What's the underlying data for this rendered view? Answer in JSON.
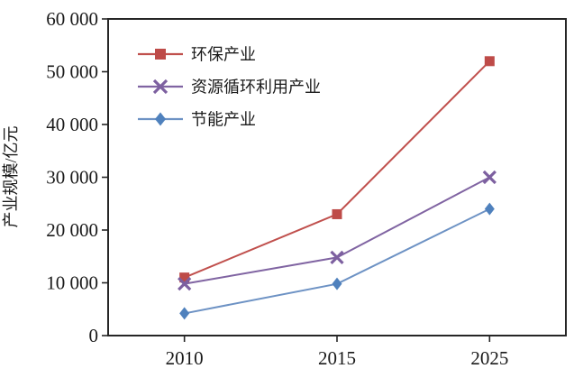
{
  "chart_data": {
    "type": "line",
    "title": "",
    "xlabel": "",
    "ylabel": "产业规模/亿元",
    "categories": [
      "2010",
      "2015",
      "2025"
    ],
    "series": [
      {
        "name": "环保产业",
        "marker": "square",
        "marker_color": "#BE4B48",
        "line_color": "#C0504D",
        "values": [
          11000,
          23000,
          52000
        ]
      },
      {
        "name": "资源循环利用产业",
        "marker": "x",
        "marker_color": "#7D60A0",
        "line_color": "#8064A2",
        "values": [
          9800,
          14800,
          30000
        ]
      },
      {
        "name": "节能产业",
        "marker": "diamond",
        "marker_color": "#4F81BD",
        "line_color": "#6D92C4",
        "values": [
          4200,
          9800,
          24000
        ]
      }
    ],
    "ylim": [
      0,
      60000
    ],
    "ytick_step": 10000,
    "ytick_labels": [
      "0",
      "10 000",
      "20 000",
      "30 000",
      "40 000",
      "50 000",
      "60 000"
    ],
    "grid": false,
    "legend_position": "upper-left-inside",
    "axis_color": "#262626",
    "text_color": "#1a1a1a",
    "background_color": "#ffffff"
  }
}
